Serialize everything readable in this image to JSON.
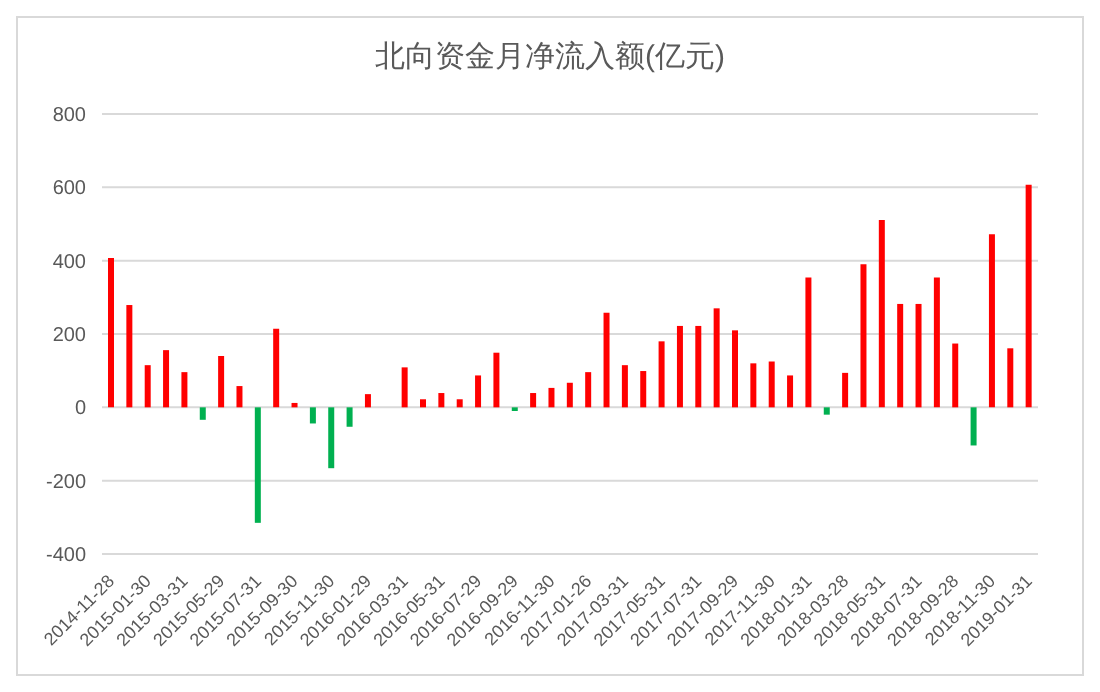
{
  "chart_data": {
    "type": "bar",
    "title": "北向资金月净流入额(亿元)",
    "categories": [
      "2014-11-28",
      null,
      "2015-01-30",
      null,
      "2015-03-31",
      null,
      "2015-05-29",
      null,
      "2015-07-31",
      null,
      "2015-09-30",
      null,
      "2015-11-30",
      null,
      "2016-01-29",
      null,
      "2016-03-31",
      null,
      "2016-05-31",
      null,
      "2016-07-29",
      null,
      "2016-09-29",
      null,
      "2016-11-30",
      null,
      "2017-01-26",
      null,
      "2017-03-31",
      null,
      "2017-05-31",
      null,
      "2017-07-31",
      null,
      "2017-09-29",
      null,
      "2017-11-30",
      null,
      "2018-01-31",
      null,
      "2018-03-28",
      null,
      "2018-05-31",
      null,
      "2018-07-31",
      null,
      "2018-09-28",
      null,
      "2018-11-30",
      null,
      "2019-01-31"
    ],
    "values": [
      407,
      279,
      115,
      156,
      96,
      -34,
      140,
      58,
      -315,
      214,
      12,
      -44,
      -166,
      -53,
      36,
      null,
      109,
      22,
      39,
      22,
      87,
      149,
      -10,
      39,
      53,
      67,
      96,
      258,
      115,
      99,
      180,
      222,
      222,
      270,
      210,
      120,
      125,
      87,
      354,
      -20,
      94,
      390,
      511,
      282,
      282,
      354,
      174,
      -104,
      472,
      161,
      607
    ],
    "colors": [
      "#ff0000",
      "#ff0000",
      "#ff0000",
      "#ff0000",
      "#ff0000",
      "#00b050",
      "#ff0000",
      "#ff0000",
      "#00b050",
      "#ff0000",
      "#ff0000",
      "#00b050",
      "#00b050",
      "#00b050",
      "#ff0000",
      "#ff0000",
      "#ff0000",
      "#ff0000",
      "#ff0000",
      "#ff0000",
      "#ff0000",
      "#ff0000",
      "#00b050",
      "#ff0000",
      "#ff0000",
      "#ff0000",
      "#ff0000",
      "#ff0000",
      "#ff0000",
      "#ff0000",
      "#ff0000",
      "#ff0000",
      "#ff0000",
      "#ff0000",
      "#ff0000",
      "#ff0000",
      "#ff0000",
      "#ff0000",
      "#ff0000",
      "#00b050",
      "#ff0000",
      "#ff0000",
      "#ff0000",
      "#ff0000",
      "#ff0000",
      "#ff0000",
      "#ff0000",
      "#00b050",
      "#ff0000",
      "#ff0000",
      "#ff0000"
    ],
    "ylim": [
      -400,
      800
    ],
    "yticks": [
      -400,
      -200,
      0,
      200,
      400,
      600,
      800
    ],
    "grid": "y"
  }
}
